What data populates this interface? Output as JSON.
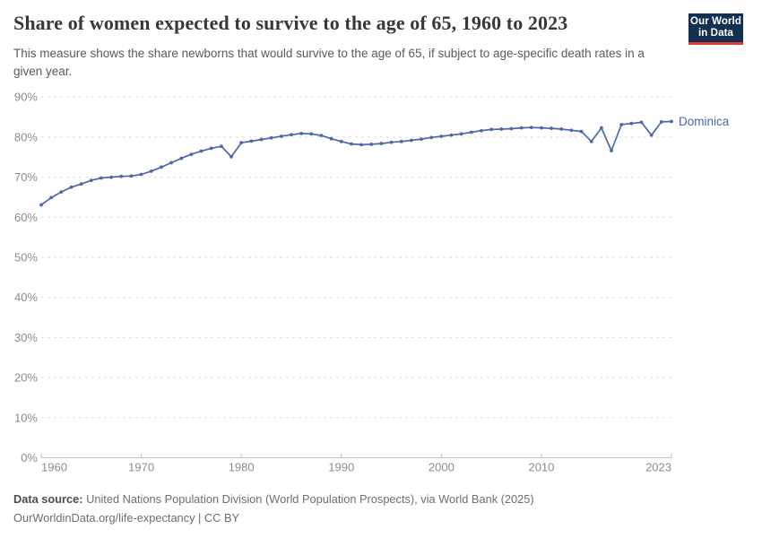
{
  "header": {
    "title": "Share of women expected to survive to the age of 65, 1960 to 2023",
    "subtitle": "This measure shows the share newborns that would survive to the age of 65, if subject to age-specific death rates in a given year.",
    "logo": {
      "line1": "Our World",
      "line2": "in Data",
      "bg_color": "#12304F",
      "accent_color": "#DC3A32"
    }
  },
  "chart_data": {
    "type": "line",
    "title": "Share of women expected to survive to the age of 65, 1960 to 2023",
    "entity_label": "Dominica",
    "x": [
      1960,
      1961,
      1962,
      1963,
      1964,
      1965,
      1966,
      1967,
      1968,
      1969,
      1970,
      1971,
      1972,
      1973,
      1974,
      1975,
      1976,
      1977,
      1978,
      1979,
      1980,
      1981,
      1982,
      1983,
      1984,
      1985,
      1986,
      1987,
      1988,
      1989,
      1990,
      1991,
      1992,
      1993,
      1994,
      1995,
      1996,
      1997,
      1998,
      1999,
      2000,
      2001,
      2002,
      2003,
      2004,
      2005,
      2006,
      2007,
      2008,
      2009,
      2010,
      2011,
      2012,
      2013,
      2014,
      2015,
      2016,
      2017,
      2018,
      2019,
      2020,
      2021,
      2022,
      2023
    ],
    "series": [
      {
        "name": "Dominica",
        "values": [
          63.1,
          64.9,
          66.3,
          67.5,
          68.3,
          69.2,
          69.8,
          70.0,
          70.2,
          70.3,
          70.7,
          71.5,
          72.5,
          73.6,
          74.7,
          75.7,
          76.5,
          77.2,
          77.7,
          75.1,
          78.6,
          79.0,
          79.4,
          79.8,
          80.2,
          80.6,
          80.9,
          80.8,
          80.4,
          79.6,
          78.9,
          78.3,
          78.1,
          78.2,
          78.4,
          78.7,
          78.9,
          79.2,
          79.5,
          79.9,
          80.2,
          80.5,
          80.8,
          81.2,
          81.6,
          81.9,
          82.0,
          82.1,
          82.3,
          82.4,
          82.3,
          82.2,
          82.0,
          81.7,
          81.4,
          78.9,
          82.3,
          76.6,
          83.1,
          83.4,
          83.7,
          80.5,
          83.8,
          83.9
        ]
      }
    ],
    "ylim": [
      0,
      90
    ],
    "yticks": [
      0,
      10,
      20,
      30,
      40,
      50,
      60,
      70,
      80,
      90
    ],
    "ytick_suffix": "%",
    "xticks": [
      1960,
      1970,
      1980,
      1990,
      2000,
      2010,
      2023
    ],
    "grid": "horizontal-dashed",
    "legend_position": "end-of-line",
    "line_color": "#4B69A5",
    "marker": "circle"
  },
  "footer": {
    "source_label": "Data source:",
    "source_text": " United Nations Population Division (World Population Prospects), via World Bank (2025)",
    "link_text": "OurWorldinData.org/life-expectancy",
    "separator": " | ",
    "license_text": "CC BY"
  }
}
